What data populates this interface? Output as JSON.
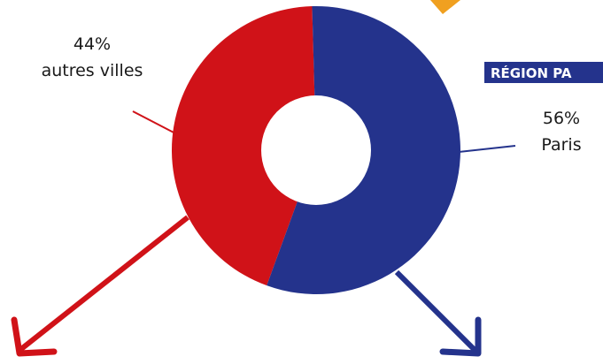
{
  "chart_data": {
    "type": "pie",
    "title": "",
    "region_badge": "RÉGION PA",
    "slices": [
      {
        "name": "autres villes",
        "label": "autres villes",
        "value": 44,
        "value_text": "44%",
        "color": "#d01218"
      },
      {
        "name": "Paris",
        "label": "Paris",
        "value": 56,
        "value_text": "56%",
        "color": "#24338c"
      }
    ],
    "decor_colors": {
      "badge": "#24338c",
      "accent_top": "#f0a020"
    }
  }
}
